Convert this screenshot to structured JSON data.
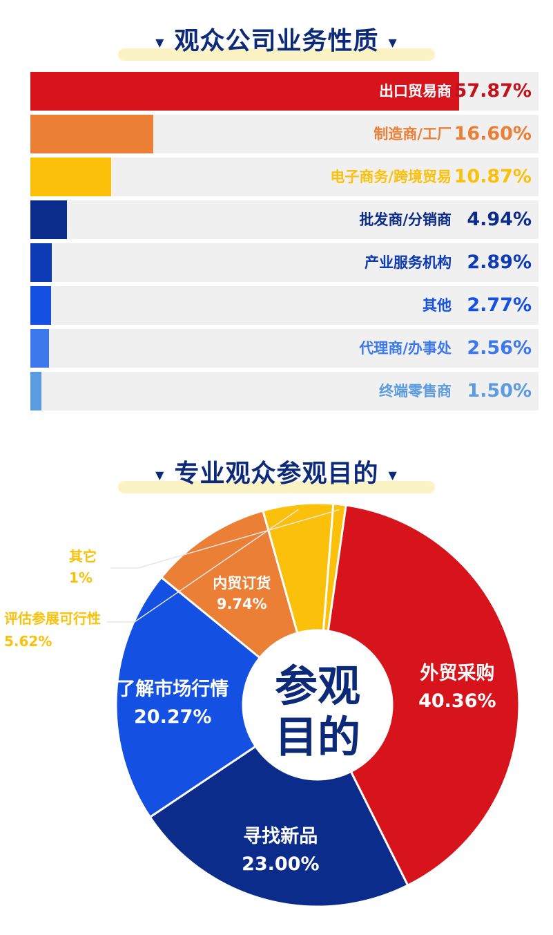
{
  "section1": {
    "title": "观众公司业务性质",
    "marker": "▼"
  },
  "section2": {
    "title": "专业观众参观目的",
    "marker": "▼"
  },
  "chart_data": [
    {
      "type": "bar",
      "orientation": "horizontal",
      "title": "观众公司业务性质",
      "categories": [
        "出口贸易商",
        "制造商/工厂",
        "电子商务/跨境贸易",
        "批发商/分销商",
        "产业服务机构",
        "其他",
        "代理商/办事处",
        "终端零售商"
      ],
      "values": [
        57.87,
        16.6,
        10.87,
        4.94,
        2.89,
        2.77,
        2.56,
        1.5
      ],
      "value_labels": [
        "57.87%",
        "16.60%",
        "10.87%",
        "4.94%",
        "2.89%",
        "2.77%",
        "2.56%",
        "1.50%"
      ],
      "colors": [
        "#d7141c",
        "#ec7f36",
        "#fbc10a",
        "#0c2c8c",
        "#0d3ab5",
        "#1450e2",
        "#3c78ec",
        "#5b9be0"
      ],
      "label_colors": [
        "#ffffff",
        "#ec7f36",
        "#fbc10a",
        "#0c2c8c",
        "#0d3ab5",
        "#1450e2",
        "#3c78ec",
        "#5b9be0"
      ],
      "value_colors": [
        "#c4101c",
        "#ec7f36",
        "#fbc10a",
        "#0c2c8c",
        "#0d3ab5",
        "#1450e2",
        "#3c78ec",
        "#5b9be0"
      ],
      "xlim": [
        0,
        100
      ]
    },
    {
      "type": "pie",
      "donut": true,
      "title": "专业观众参观目的",
      "center_text": [
        "参观",
        "目的"
      ],
      "slices": [
        {
          "label": "外贸采购",
          "value": 40.36,
          "display": "40.36%",
          "color": "#d7141c"
        },
        {
          "label": "寻找新品",
          "value": 23.0,
          "display": "23.00%",
          "color": "#0c2c8c"
        },
        {
          "label": "了解市场行情",
          "value": 20.27,
          "display": "20.27%",
          "color": "#1450e2"
        },
        {
          "label": "内贸订货",
          "value": 9.74,
          "display": "9.74%",
          "color": "#ec7f36"
        },
        {
          "label": "评估参展可行性",
          "value": 5.62,
          "display": "5.62%",
          "color": "#fbc10a"
        },
        {
          "label": "其它",
          "value": 1,
          "display": "1%",
          "color": "#fbc10a"
        }
      ]
    }
  ]
}
